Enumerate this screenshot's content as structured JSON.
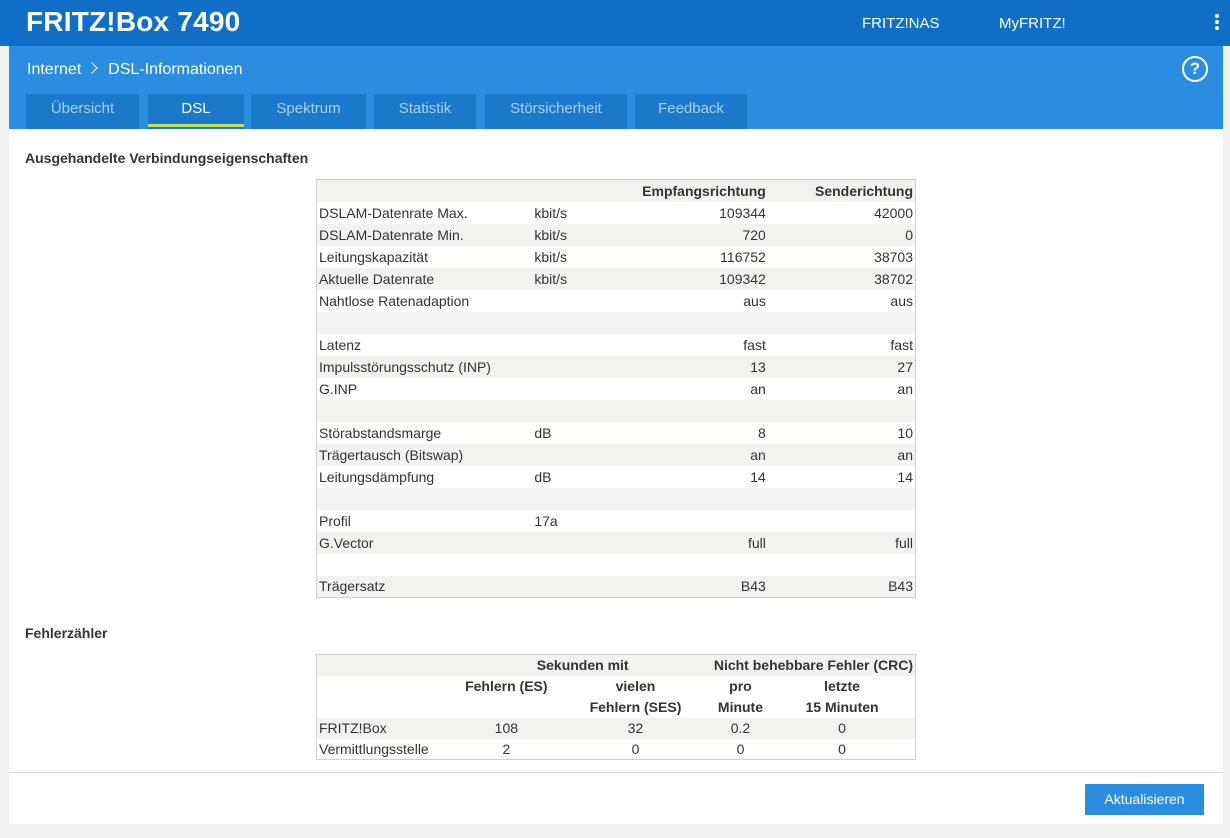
{
  "header": {
    "brand": "FRITZ!Box 7490",
    "links": [
      "FRITZ!NAS",
      "MyFRITZ!"
    ],
    "menu_icon": "vertical-dots-icon"
  },
  "breadcrumb": {
    "parent": "Internet",
    "current": "DSL-Informationen",
    "separator_icon": "chevron-right-icon"
  },
  "help": {
    "label": "?",
    "icon": "help-circle-icon"
  },
  "tabs": [
    {
      "label": "Übersicht",
      "active": false
    },
    {
      "label": "DSL",
      "active": true
    },
    {
      "label": "Spektrum",
      "active": false
    },
    {
      "label": "Statistik",
      "active": false
    },
    {
      "label": "Störsicherheit",
      "active": false
    },
    {
      "label": "Feedback",
      "active": false
    }
  ],
  "props": {
    "title": "Ausgehandelte Verbindungseigenschaften",
    "headers": [
      "",
      "",
      "Empfangsrichtung",
      "Senderichtung"
    ],
    "rows": [
      [
        "DSLAM-Datenrate Max.",
        "kbit/s",
        "109344",
        "42000"
      ],
      [
        "DSLAM-Datenrate Min.",
        "kbit/s",
        "720",
        "0"
      ],
      [
        "Leitungskapazität",
        "kbit/s",
        "116752",
        "38703"
      ],
      [
        "Aktuelle Datenrate",
        "kbit/s",
        "109342",
        "38702"
      ],
      [
        "Nahtlose Ratenadaption",
        "",
        "aus",
        "aus"
      ],
      [
        "",
        "",
        "",
        ""
      ],
      [
        "Latenz",
        "",
        "fast",
        "fast"
      ],
      [
        "Impulsstörungsschutz (INP)",
        "",
        "13",
        "27"
      ],
      [
        "G.INP",
        "",
        "an",
        "an"
      ],
      [
        "",
        "",
        "",
        ""
      ],
      [
        "Störabstandsmarge",
        "dB",
        "8",
        "10"
      ],
      [
        "Trägertausch (Bitswap)",
        "",
        "an",
        "an"
      ],
      [
        "Leitungsdämpfung",
        "dB",
        "14",
        "14"
      ],
      [
        "",
        "",
        "",
        ""
      ],
      [
        "Profil",
        "17a",
        "",
        ""
      ],
      [
        "G.Vector",
        "",
        "full",
        "full"
      ],
      [
        "",
        "",
        "",
        ""
      ],
      [
        "Trägersatz",
        "",
        "B43",
        "B43"
      ]
    ]
  },
  "errors": {
    "title": "Fehlerzähler",
    "group1": "Sekunden mit",
    "group2": "Nicht behebbare Fehler (CRC)",
    "col1": "Fehlern (ES)",
    "col2a": "vielen",
    "col2b": "Fehlern (SES)",
    "col3a": "pro",
    "col3b": "Minute",
    "col4a": "letzte",
    "col4b": "15 Minuten",
    "rows": [
      [
        "FRITZ!Box",
        "108",
        "32",
        "0.2",
        "0"
      ],
      [
        "Vermittlungsstelle",
        "2",
        "0",
        "0",
        "0"
      ]
    ]
  },
  "footer": {
    "refresh_label": "Aktualisieren"
  },
  "colors": {
    "topbar": "#0f6fc6",
    "subbar": "#2a8de0",
    "tab": "#1b79cc",
    "tab_active_underline": "#c6e34a"
  }
}
